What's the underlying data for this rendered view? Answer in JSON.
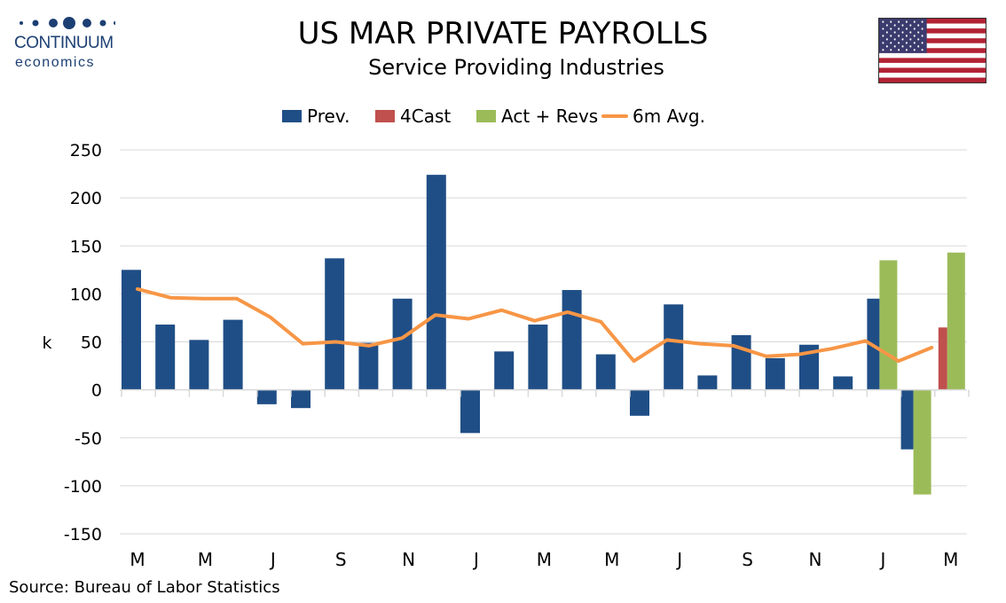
{
  "logo": {
    "name": "CONTINUUM",
    "sub": "economics"
  },
  "header": {
    "title": "US MAR PRIVATE PAYROLLS",
    "subtitle": "Service Providing Industries"
  },
  "source": "Source: Bureau of Labor Statistics",
  "colors": {
    "prev": "#1f4e86",
    "forecast": "#c0504d",
    "actual": "#9bbb59",
    "avg": "#f79646",
    "grid": "#d9d9d9"
  },
  "chart_data": {
    "type": "bar",
    "title": "US MAR PRIVATE PAYROLLS",
    "subtitle": "Service Providing Industries",
    "xlabel": "",
    "ylabel": "k",
    "ylim": [
      -150,
      250
    ],
    "yticks": [
      250,
      200,
      150,
      100,
      50,
      0,
      -50,
      -100,
      -150
    ],
    "grid": true,
    "legend_position": "top",
    "legend": [
      "Prev.",
      "4Cast",
      "Act + Revs",
      "6m Avg."
    ],
    "categories": [
      "Mar",
      "Apr",
      "May",
      "Jun",
      "Jul",
      "Aug",
      "Sep",
      "Oct",
      "Nov",
      "Dec",
      "Jan",
      "Feb",
      "Mar",
      "Apr",
      "May",
      "Jun",
      "Jul",
      "Aug",
      "Sep",
      "Oct",
      "Nov",
      "Dec",
      "Jan",
      "Feb",
      "Mar"
    ],
    "xtick_labels": [
      {
        "index": 0,
        "label": "M"
      },
      {
        "index": 2,
        "label": "M"
      },
      {
        "index": 4,
        "label": "J"
      },
      {
        "index": 6,
        "label": "S"
      },
      {
        "index": 8,
        "label": "N"
      },
      {
        "index": 10,
        "label": "J"
      },
      {
        "index": 12,
        "label": "M"
      },
      {
        "index": 14,
        "label": "M"
      },
      {
        "index": 16,
        "label": "J"
      },
      {
        "index": 18,
        "label": "S"
      },
      {
        "index": 20,
        "label": "N"
      },
      {
        "index": 22,
        "label": "J"
      },
      {
        "index": 24,
        "label": "M"
      }
    ],
    "series": [
      {
        "name": "Prev.",
        "type": "bar",
        "values": [
          125,
          68,
          52,
          73,
          -15,
          -19,
          137,
          49,
          95,
          224,
          -45,
          40,
          68,
          104,
          37,
          -27,
          89,
          15,
          57,
          33,
          47,
          14,
          95,
          -62,
          null
        ]
      },
      {
        "name": "4Cast",
        "type": "bar",
        "values": [
          null,
          null,
          null,
          null,
          null,
          null,
          null,
          null,
          null,
          null,
          null,
          null,
          null,
          null,
          null,
          null,
          null,
          null,
          null,
          null,
          null,
          null,
          null,
          null,
          65
        ]
      },
      {
        "name": "Act + Revs",
        "type": "bar",
        "values": [
          null,
          null,
          null,
          null,
          null,
          null,
          null,
          null,
          null,
          null,
          null,
          null,
          null,
          null,
          null,
          null,
          null,
          null,
          null,
          null,
          null,
          null,
          135,
          -109,
          143
        ]
      },
      {
        "name": "6m Avg.",
        "type": "line",
        "values": [
          105,
          96,
          95,
          95,
          76,
          48,
          50,
          46,
          54,
          78,
          74,
          83,
          72,
          81,
          71,
          30,
          52,
          48,
          46,
          35,
          37,
          43,
          51,
          30,
          44
        ]
      }
    ]
  }
}
